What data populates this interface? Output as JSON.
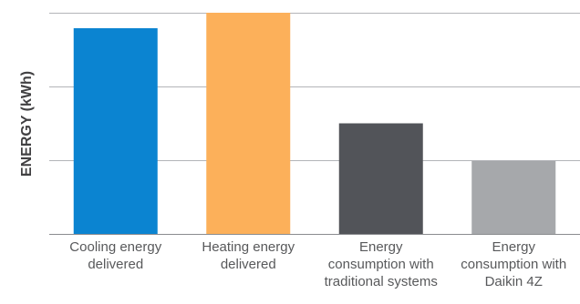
{
  "chart_data": {
    "type": "bar",
    "title": "",
    "xlabel": "",
    "ylabel": "ENERGY (kWh)",
    "ylim": [
      0,
      100
    ],
    "grid": true,
    "y_ticks": [
      0,
      33.3,
      66.7,
      100
    ],
    "y_tick_labels_shown": false,
    "categories": [
      [
        "Cooling energy",
        "delivered"
      ],
      [
        "Heating energy",
        "delivered"
      ],
      [
        "Energy",
        "consumption with",
        "traditional systems"
      ],
      [
        "Energy",
        "consumption with",
        "Daikin 4Z"
      ]
    ],
    "values": [
      93,
      100,
      50,
      33
    ],
    "colors": [
      "#0b84d1",
      "#fcb05a",
      "#525459",
      "#a6a8ab"
    ]
  }
}
